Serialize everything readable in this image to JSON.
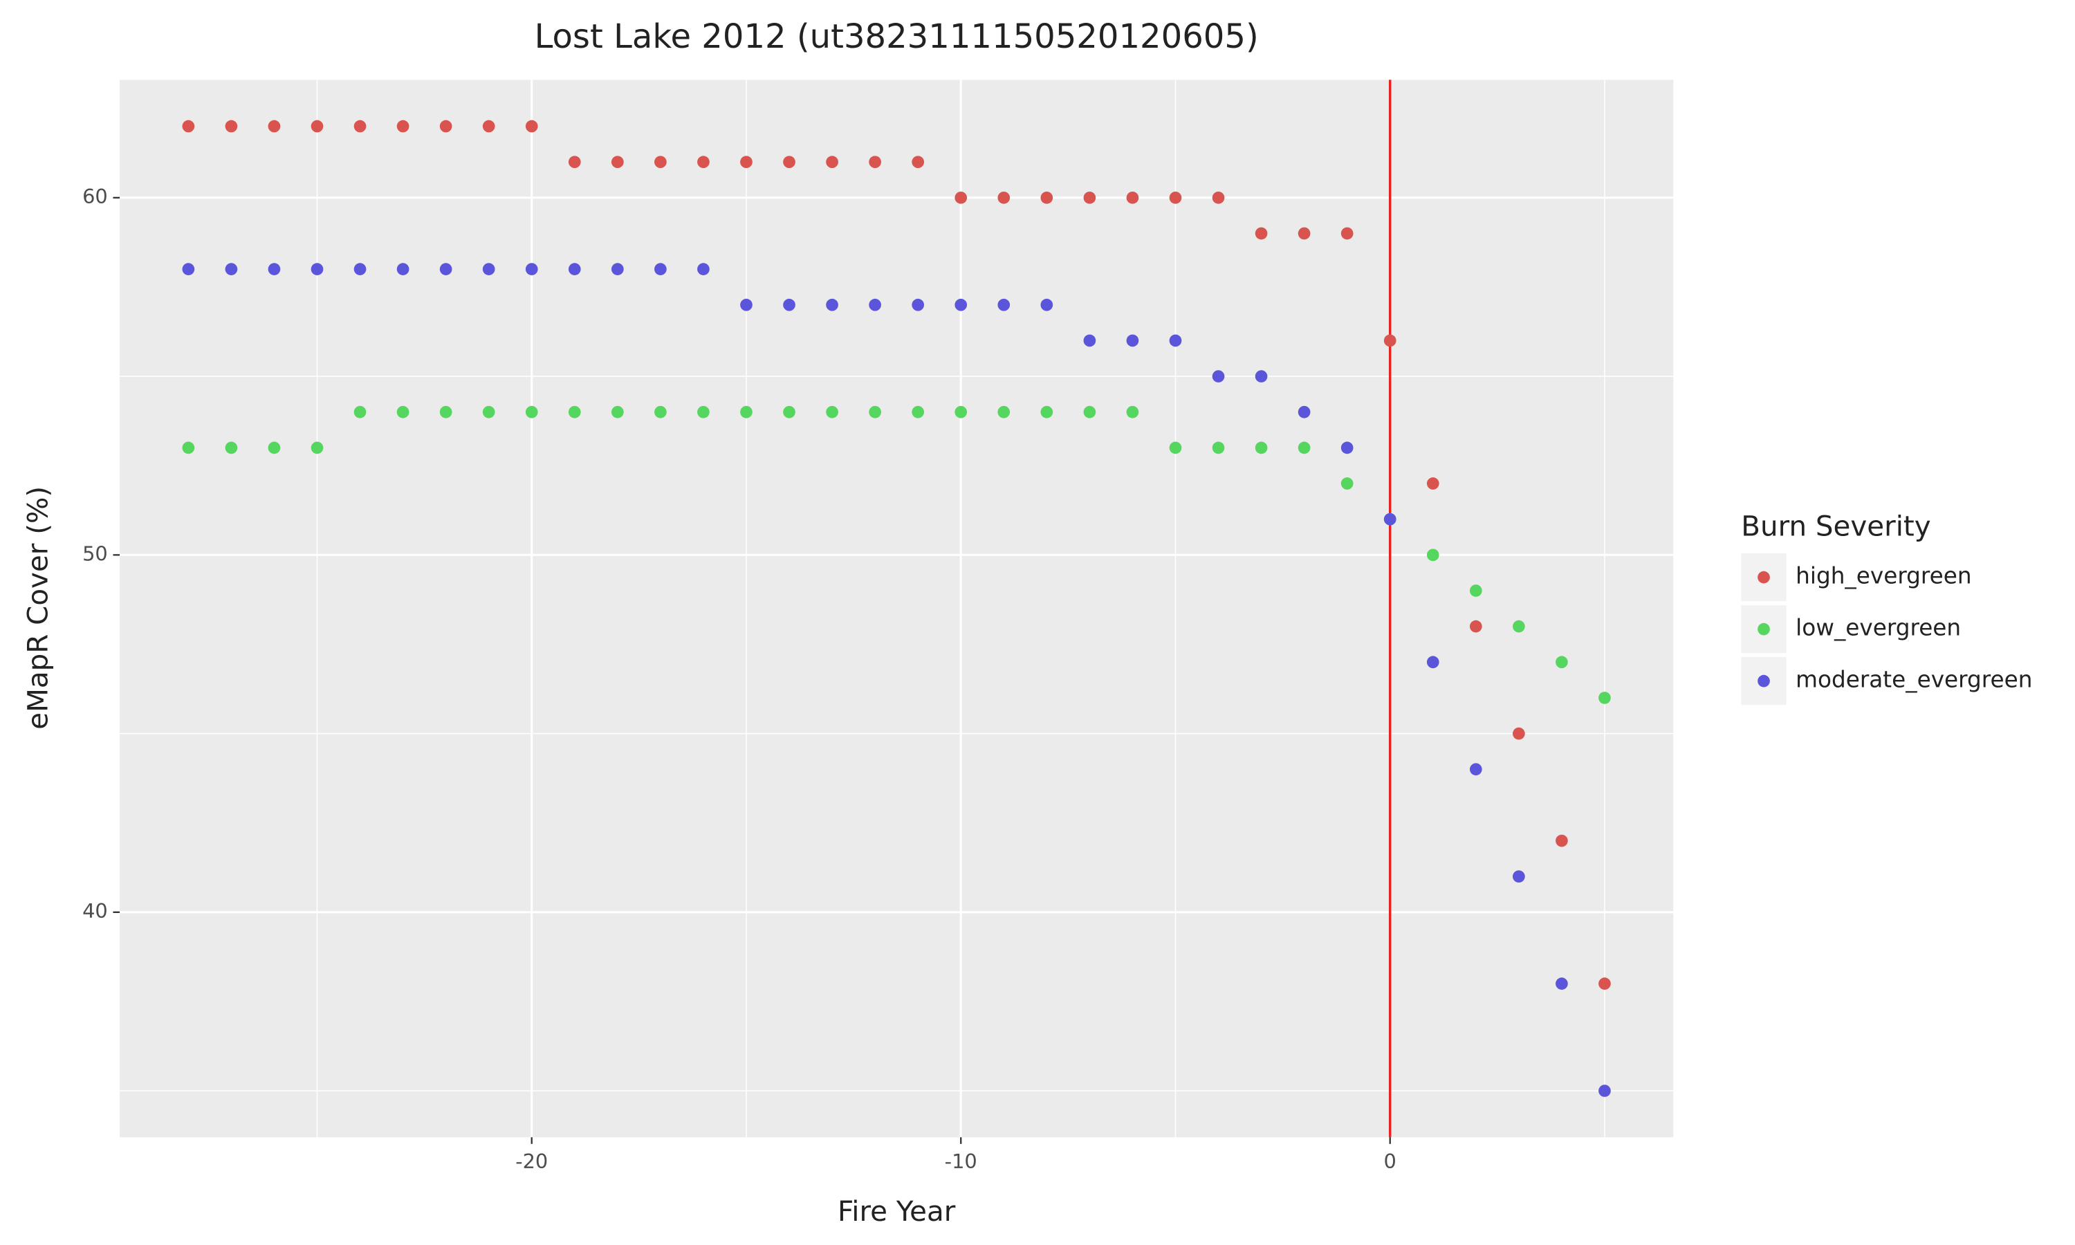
{
  "chart_data": {
    "type": "scatter",
    "title": "Lost Lake 2012 (ut3823111150520120605)",
    "x_label": "Fire Year",
    "y_label": "eMapR Cover (%)",
    "legend_title": "Burn Severity",
    "legend_position": "right",
    "x": [
      -28,
      -27,
      -26,
      -25,
      -24,
      -23,
      -22,
      -21,
      -20,
      -19,
      -18,
      -17,
      -16,
      -15,
      -14,
      -13,
      -12,
      -11,
      -10,
      -9,
      -8,
      -7,
      -6,
      -5,
      -4,
      -3,
      -2,
      -1,
      0,
      1,
      2,
      3,
      4,
      5
    ],
    "series": [
      {
        "name": "high_evergreen",
        "color": "#d9544f",
        "values": [
          62,
          62,
          62,
          62,
          62,
          62,
          62,
          62,
          62,
          61,
          61,
          61,
          61,
          61,
          61,
          61,
          61,
          61,
          60,
          60,
          60,
          60,
          60,
          60,
          60,
          59,
          59,
          59,
          56,
          52,
          48,
          45,
          42,
          38
        ]
      },
      {
        "name": "low_evergreen",
        "color": "#55d65e",
        "values": [
          53,
          53,
          53,
          53,
          54,
          54,
          54,
          54,
          54,
          54,
          54,
          54,
          54,
          54,
          54,
          54,
          54,
          54,
          54,
          54,
          54,
          54,
          54,
          53,
          53,
          53,
          53,
          52,
          51,
          50,
          49,
          48,
          47,
          46
        ]
      },
      {
        "name": "moderate_evergreen",
        "color": "#5b55db",
        "values": [
          58,
          58,
          58,
          58,
          58,
          58,
          58,
          58,
          58,
          58,
          58,
          58,
          58,
          57,
          57,
          57,
          57,
          57,
          57,
          57,
          57,
          56,
          56,
          56,
          55,
          55,
          54,
          53,
          51,
          47,
          44,
          41,
          38,
          35
        ]
      }
    ],
    "xlim": [
      -29.6,
      6.6
    ],
    "ylim": [
      33.7,
      63.3
    ],
    "xticks": [
      -20,
      -10,
      0
    ],
    "yticks": [
      40,
      50,
      60
    ],
    "minor_xticks": [
      -25,
      -15,
      -5,
      5
    ],
    "minor_yticks": [
      35,
      45,
      55
    ],
    "grid": true,
    "vline": {
      "x": 0,
      "color": "#e8231f"
    }
  }
}
